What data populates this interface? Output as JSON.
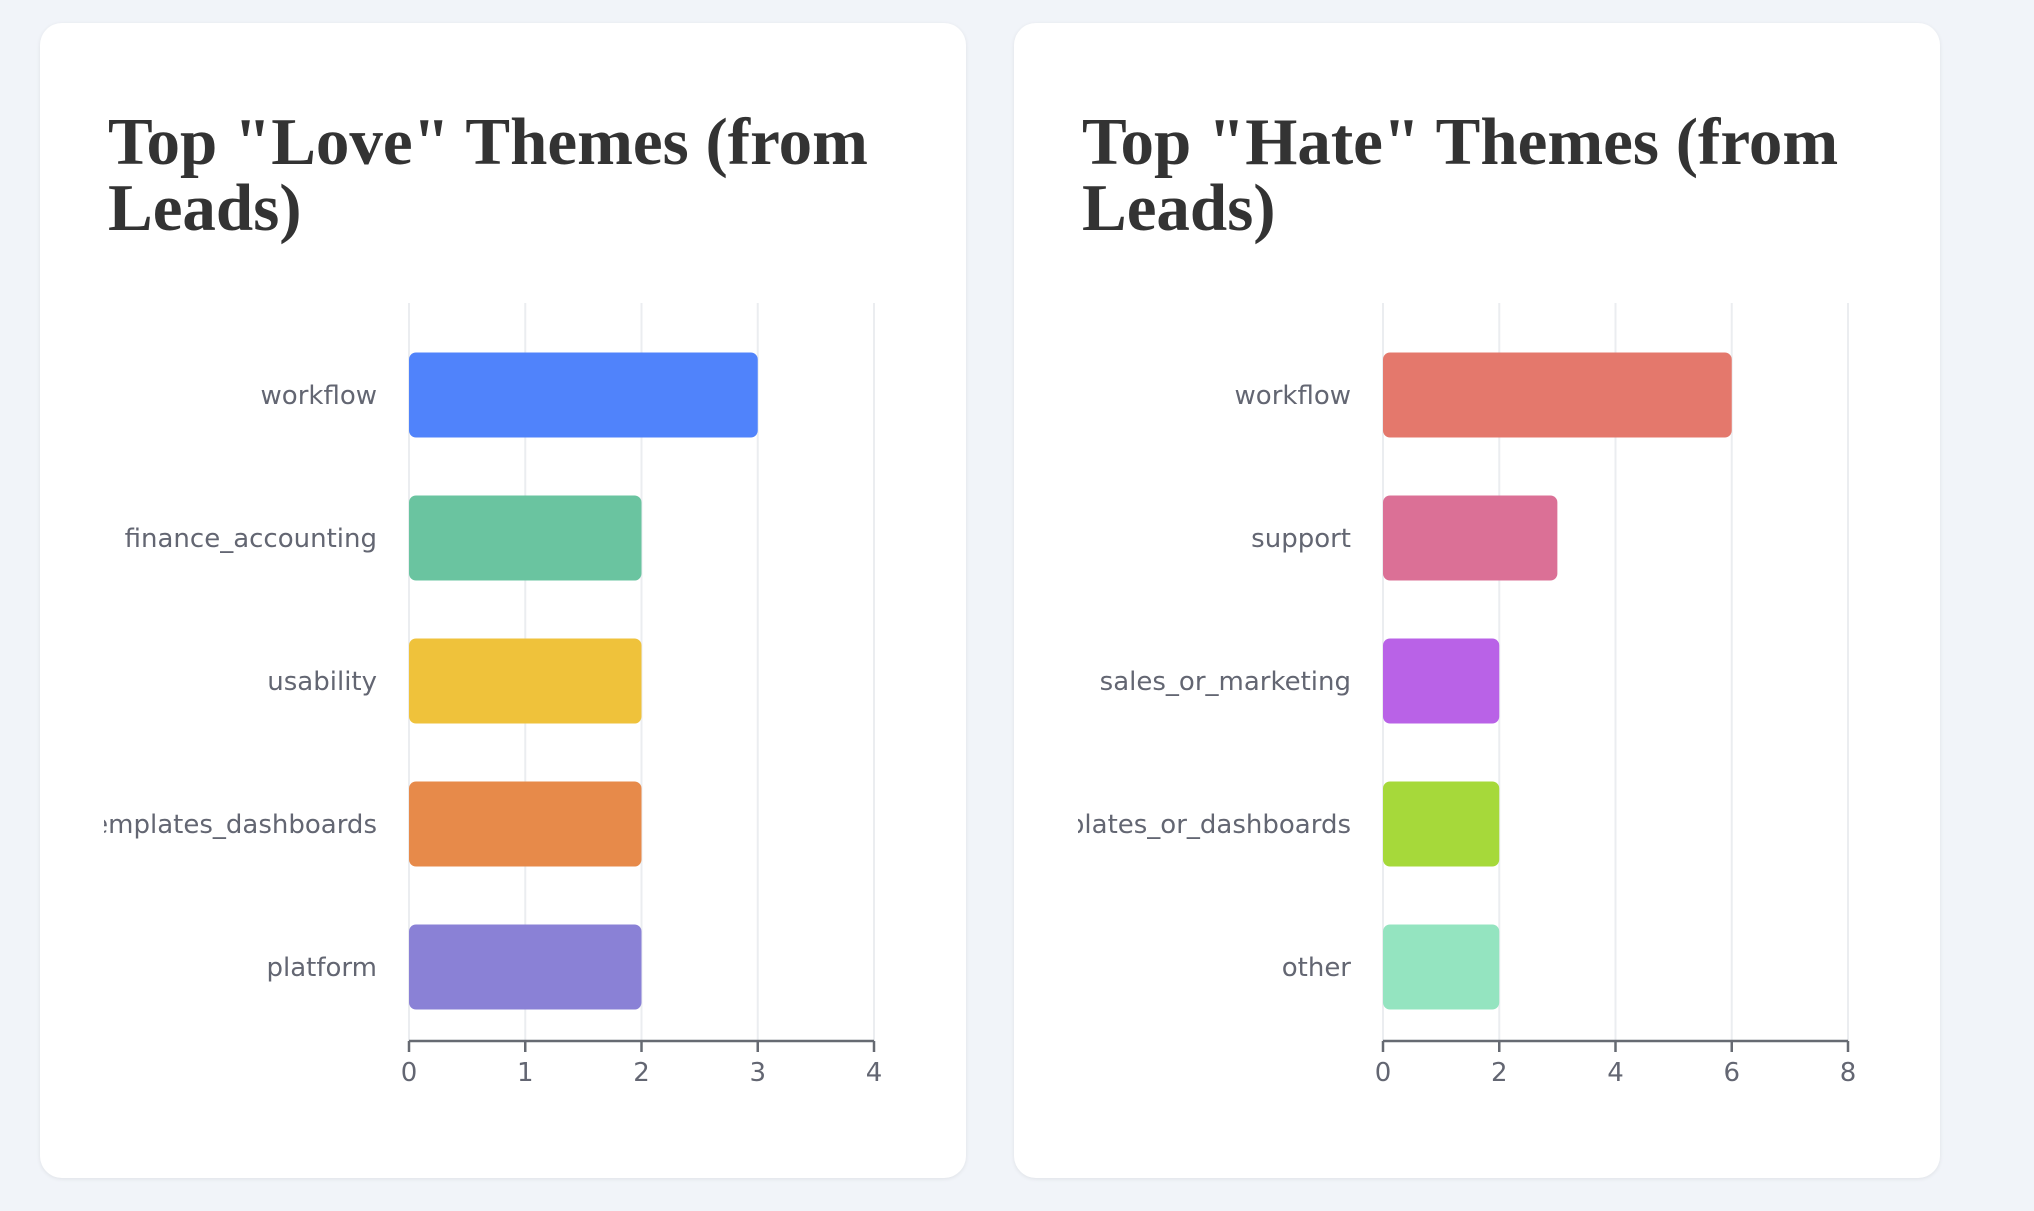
{
  "chart_data": [
    {
      "type": "bar",
      "orientation": "horizontal",
      "title": "Top \"Love\" Themes (from Leads)",
      "categories": [
        "workflow",
        "finance_accounting",
        "usability",
        "templates_dashboards",
        "platform"
      ],
      "values": [
        3,
        2,
        2,
        2,
        2
      ],
      "colors": [
        "#5083fb",
        "#6ac4a0",
        "#efc23b",
        "#e78a4a",
        "#8a81d6"
      ],
      "xlim": [
        0,
        4
      ],
      "xticks": [
        "0",
        "1",
        "2",
        "3",
        "4"
      ],
      "grid": true,
      "legend": "none"
    },
    {
      "type": "bar",
      "orientation": "horizontal",
      "title": "Top \"Hate\" Themes (from Leads)",
      "categories": [
        "workflow",
        "support",
        "sales_or_marketing",
        "templates_or_dashboards",
        "other"
      ],
      "values": [
        6,
        3,
        2,
        2,
        2
      ],
      "colors": [
        "#e4786c",
        "#db7096",
        "#b962e7",
        "#a6d93a",
        "#94e4c0"
      ],
      "xlim": [
        0,
        8
      ],
      "xticks": [
        "0",
        "2",
        "4",
        "6",
        "8"
      ],
      "grid": true,
      "legend": "none"
    }
  ]
}
